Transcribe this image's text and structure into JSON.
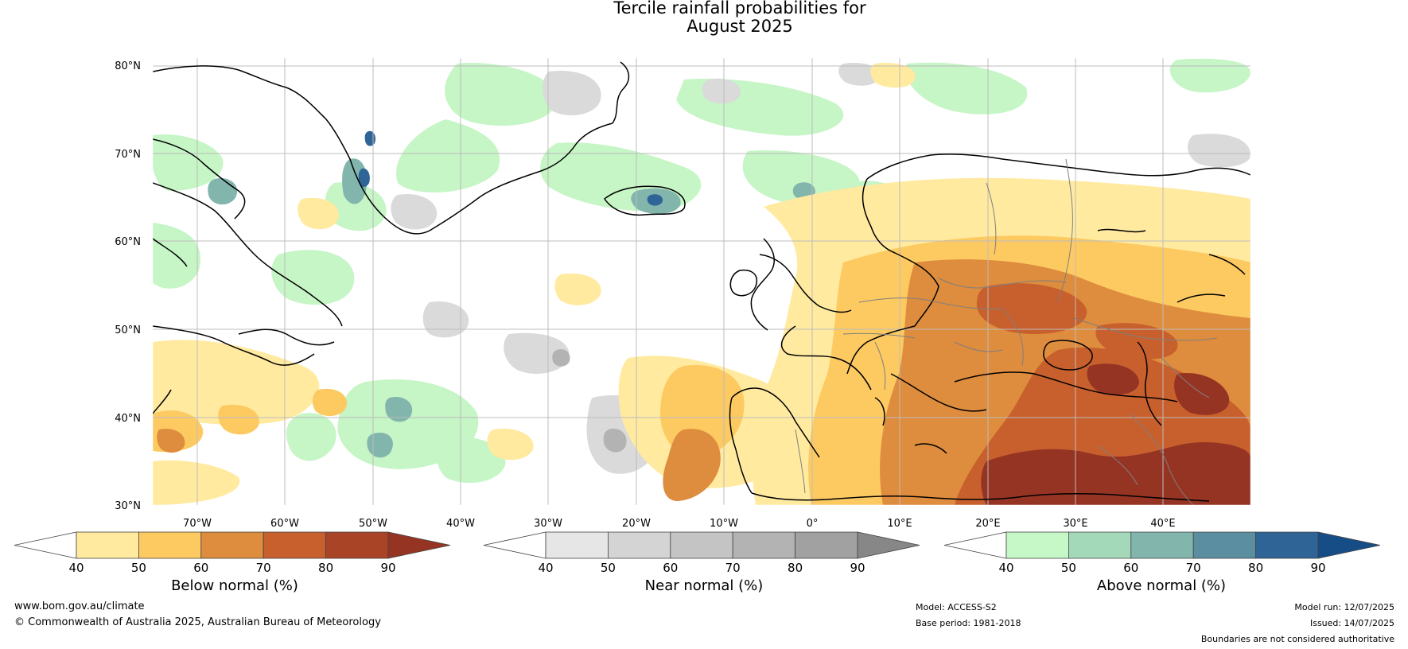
{
  "title": {
    "line1": "Tercile rainfall probabilities for",
    "line2": "August 2025"
  },
  "map": {
    "lat_labels": [
      "80°N",
      "70°N",
      "60°N",
      "50°N",
      "40°N",
      "30°N"
    ],
    "lon_labels": [
      "70°W",
      "60°W",
      "50°W",
      "40°W",
      "30°W",
      "20°W",
      "10°W",
      "0°",
      "10°E",
      "20°E",
      "30°E",
      "40°E"
    ],
    "category_colors": {
      "below_normal": "#f3bf6a",
      "near_normal": "#d9d9d9",
      "above_normal": "#c6f5c6"
    }
  },
  "colorbars": [
    {
      "id": "below",
      "label": "Below normal (%)",
      "ticks": [
        "40",
        "50",
        "60",
        "70",
        "80",
        "90"
      ],
      "colors": [
        "#ffffff",
        "#ffeaa0",
        "#fdca62",
        "#de8c3d",
        "#c8602d",
        "#aa4427",
        "#963424"
      ]
    },
    {
      "id": "near",
      "label": "Near normal (%)",
      "ticks": [
        "40",
        "50",
        "60",
        "70",
        "80",
        "90"
      ],
      "colors": [
        "#ffffff",
        "#e6e6e6",
        "#d4d4d4",
        "#c4c4c4",
        "#b3b3b3",
        "#a1a1a1",
        "#878787"
      ]
    },
    {
      "id": "above",
      "label": "Above normal (%)",
      "ticks": [
        "40",
        "50",
        "60",
        "70",
        "80",
        "90"
      ],
      "colors": [
        "#ffffff",
        "#c6f7c6",
        "#a3d9b8",
        "#82b6ad",
        "#5b8ea0",
        "#2f6596",
        "#174d86"
      ]
    }
  ],
  "footer": {
    "website": "www.bom.gov.au/climate",
    "copyright": "© Commonwealth of Australia 2025, Australian Bureau of Meteorology",
    "model": "Model: ACCESS-S2",
    "base_period": "Base period: 1981-2018",
    "model_run": "Model run: 12/07/2025",
    "issued": "Issued: 14/07/2025",
    "disclaimer": "Boundaries are not considered authoritative"
  }
}
